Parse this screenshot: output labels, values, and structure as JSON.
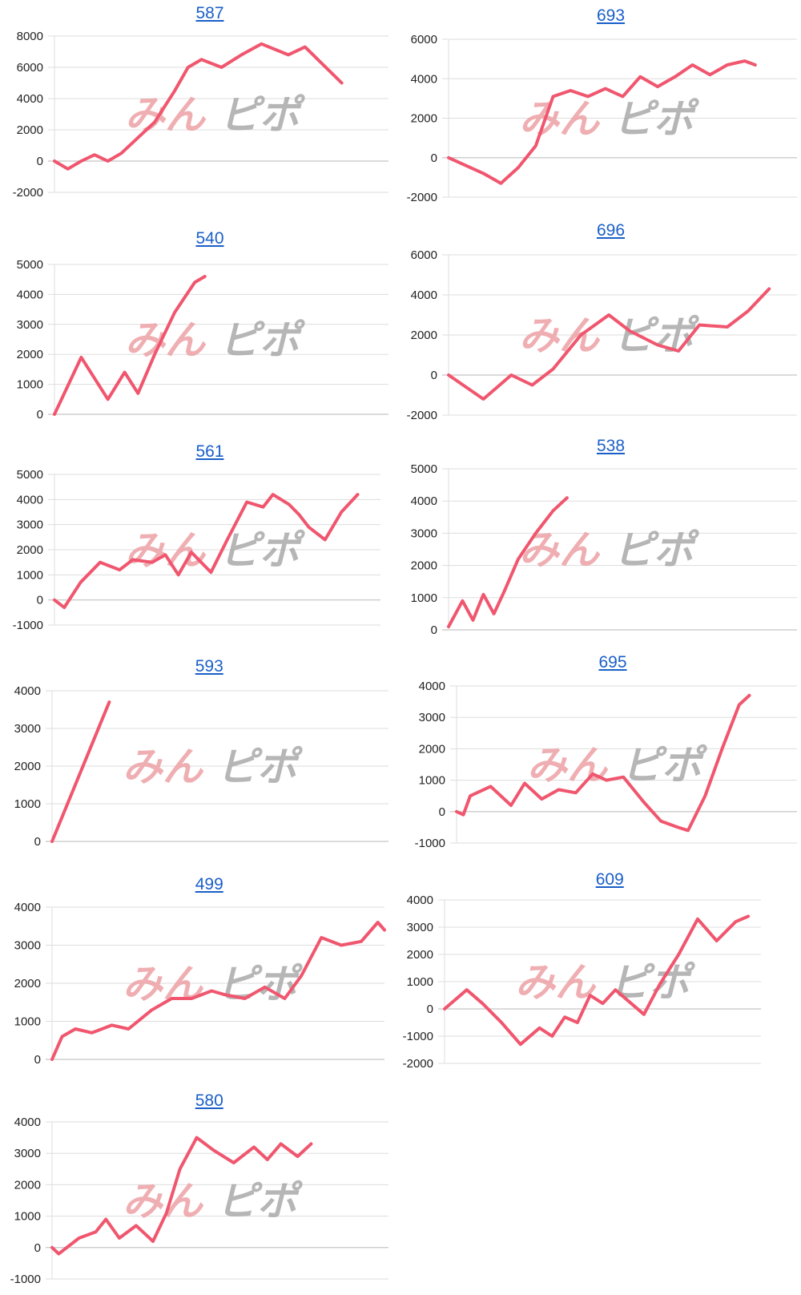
{
  "watermark": {
    "part1": "みん",
    "part2": "ピポ"
  },
  "colors": {
    "line": "#f0566e",
    "title_link": "#1a5fc8",
    "grid": "#dddddd"
  },
  "chart_data": [
    {
      "type": "line",
      "title": "587",
      "ylim": [
        -2000,
        8000
      ],
      "yticks": [
        "8000",
        "6000",
        "4000",
        "2000",
        "0",
        "-2000"
      ],
      "tickvals": [
        8000,
        6000,
        4000,
        2000,
        0,
        -2000
      ],
      "x": [
        0,
        0.04,
        0.08,
        0.12,
        0.16,
        0.2,
        0.3,
        0.36,
        0.4,
        0.44,
        0.5,
        0.56,
        0.62,
        0.7,
        0.75,
        0.86
      ],
      "y": [
        0,
        -500,
        0,
        400,
        0,
        500,
        2500,
        4500,
        6000,
        6500,
        6000,
        6800,
        7500,
        6800,
        7300,
        5000
      ]
    },
    {
      "type": "line",
      "title": "693",
      "ylim": [
        -2000,
        6000
      ],
      "yticks": [
        "6000",
        "4000",
        "2000",
        "0",
        "-2000"
      ],
      "tickvals": [
        6000,
        4000,
        2000,
        0,
        -2000
      ],
      "x": [
        0,
        0.1,
        0.15,
        0.2,
        0.25,
        0.3,
        0.35,
        0.4,
        0.45,
        0.5,
        0.55,
        0.6,
        0.65,
        0.7,
        0.75,
        0.8,
        0.85,
        0.88
      ],
      "y": [
        0,
        -800,
        -1300,
        -500,
        600,
        3100,
        3400,
        3100,
        3500,
        3100,
        4100,
        3600,
        4100,
        4700,
        4200,
        4700,
        4900,
        4700
      ]
    },
    {
      "type": "line",
      "title": "540",
      "ylim": [
        0,
        5000
      ],
      "yticks": [
        "5000",
        "4000",
        "3000",
        "2000",
        "1000",
        "0"
      ],
      "tickvals": [
        5000,
        4000,
        3000,
        2000,
        1000,
        0
      ],
      "x": [
        0,
        0.08,
        0.16,
        0.21,
        0.25,
        0.3,
        0.36,
        0.42,
        0.45
      ],
      "y": [
        0,
        1900,
        500,
        1400,
        700,
        2000,
        3400,
        4400,
        4600
      ]
    },
    {
      "type": "line",
      "title": "696",
      "ylim": [
        -2000,
        6000
      ],
      "yticks": [
        "6000",
        "4000",
        "2000",
        "0",
        "-2000"
      ],
      "tickvals": [
        6000,
        4000,
        2000,
        0,
        -2000
      ],
      "x": [
        0,
        0.1,
        0.18,
        0.24,
        0.3,
        0.38,
        0.46,
        0.52,
        0.6,
        0.66,
        0.72,
        0.8,
        0.86,
        0.92
      ],
      "y": [
        0,
        -1200,
        0,
        -500,
        300,
        2000,
        3000,
        2200,
        1500,
        1200,
        2500,
        2400,
        3200,
        4300
      ]
    },
    {
      "type": "line",
      "title": "561",
      "ylim": [
        -1000,
        5000
      ],
      "yticks": [
        "5000",
        "4000",
        "3000",
        "2000",
        "1000",
        "0",
        "-1000"
      ],
      "tickvals": [
        5000,
        4000,
        3000,
        2000,
        1000,
        0,
        -1000
      ],
      "x": [
        0,
        0.03,
        0.08,
        0.14,
        0.2,
        0.24,
        0.3,
        0.34,
        0.38,
        0.42,
        0.48,
        0.53,
        0.59,
        0.64,
        0.67,
        0.72,
        0.75,
        0.78,
        0.83,
        0.88,
        0.93
      ],
      "y": [
        0,
        -300,
        700,
        1500,
        1200,
        1600,
        1500,
        1800,
        1000,
        1900,
        1100,
        2400,
        3900,
        3700,
        4200,
        3800,
        3400,
        2900,
        2400,
        3500,
        4200
      ]
    },
    {
      "type": "line",
      "title": "538",
      "ylim": [
        0,
        5000
      ],
      "yticks": [
        "5000",
        "4000",
        "3000",
        "2000",
        "1000",
        "0"
      ],
      "tickvals": [
        5000,
        4000,
        3000,
        2000,
        1000,
        0
      ],
      "x": [
        0,
        0.04,
        0.07,
        0.1,
        0.13,
        0.16,
        0.2,
        0.25,
        0.3,
        0.34
      ],
      "y": [
        100,
        900,
        300,
        1100,
        500,
        1200,
        2200,
        3000,
        3700,
        4100
      ]
    },
    {
      "type": "line",
      "title": "593",
      "ylim": [
        0,
        4000
      ],
      "yticks": [
        "4000",
        "3000",
        "2000",
        "1000",
        "0"
      ],
      "tickvals": [
        4000,
        3000,
        2000,
        1000,
        0
      ],
      "x": [
        0,
        0.17
      ],
      "y": [
        0,
        3700
      ]
    },
    {
      "type": "line",
      "title": "695",
      "ylim": [
        -1000,
        4000
      ],
      "yticks": [
        "4000",
        "3000",
        "2000",
        "1000",
        "0",
        "-1000"
      ],
      "tickvals": [
        4000,
        3000,
        2000,
        1000,
        0,
        -1000
      ],
      "x": [
        0,
        0.02,
        0.04,
        0.1,
        0.16,
        0.2,
        0.25,
        0.3,
        0.35,
        0.4,
        0.44,
        0.49,
        0.55,
        0.6,
        0.65,
        0.68,
        0.73,
        0.78,
        0.83,
        0.86
      ],
      "y": [
        0,
        -100,
        500,
        800,
        200,
        900,
        400,
        700,
        600,
        1200,
        1000,
        1100,
        300,
        -300,
        -500,
        -600,
        500,
        2000,
        3400,
        3700
      ]
    },
    {
      "type": "line",
      "title": "499",
      "ylim": [
        0,
        4000
      ],
      "yticks": [
        "4000",
        "3000",
        "2000",
        "1000",
        "0"
      ],
      "tickvals": [
        4000,
        3000,
        2000,
        1000,
        0
      ],
      "x": [
        0,
        0.03,
        0.07,
        0.12,
        0.18,
        0.23,
        0.3,
        0.36,
        0.42,
        0.48,
        0.52,
        0.58,
        0.64,
        0.7,
        0.75,
        0.81,
        0.87,
        0.93,
        0.98,
        1.0
      ],
      "y": [
        0,
        600,
        800,
        700,
        900,
        800,
        1300,
        1600,
        1600,
        1800,
        1700,
        1600,
        1900,
        1600,
        2200,
        3200,
        3000,
        3100,
        3600,
        3400
      ]
    },
    {
      "type": "line",
      "title": "609",
      "ylim": [
        -2000,
        4000
      ],
      "yticks": [
        "4000",
        "3000",
        "2000",
        "1000",
        "0",
        "-1000",
        "-2000"
      ],
      "tickvals": [
        4000,
        3000,
        2000,
        1000,
        0,
        -1000,
        -2000
      ],
      "x": [
        0,
        0.07,
        0.12,
        0.18,
        0.24,
        0.3,
        0.34,
        0.38,
        0.42,
        0.46,
        0.5,
        0.54,
        0.58,
        0.63,
        0.68,
        0.74,
        0.8,
        0.86,
        0.92,
        0.96
      ],
      "y": [
        0,
        700,
        200,
        -500,
        -1300,
        -700,
        -1000,
        -300,
        -500,
        500,
        200,
        700,
        300,
        -200,
        900,
        2000,
        3300,
        2500,
        3200,
        3400
      ]
    },
    {
      "type": "line",
      "title": "580",
      "ylim": [
        -1000,
        4000
      ],
      "yticks": [
        "4000",
        "3000",
        "2000",
        "1000",
        "0",
        "-1000"
      ],
      "tickvals": [
        4000,
        3000,
        2000,
        1000,
        0,
        -1000
      ],
      "x": [
        0,
        0.02,
        0.08,
        0.13,
        0.16,
        0.2,
        0.25,
        0.3,
        0.34,
        0.38,
        0.43,
        0.48,
        0.54,
        0.6,
        0.64,
        0.68,
        0.73,
        0.77
      ],
      "y": [
        0,
        -200,
        300,
        500,
        900,
        300,
        700,
        200,
        1100,
        2500,
        3500,
        3100,
        2700,
        3200,
        2800,
        3300,
        2900,
        3300
      ]
    }
  ]
}
